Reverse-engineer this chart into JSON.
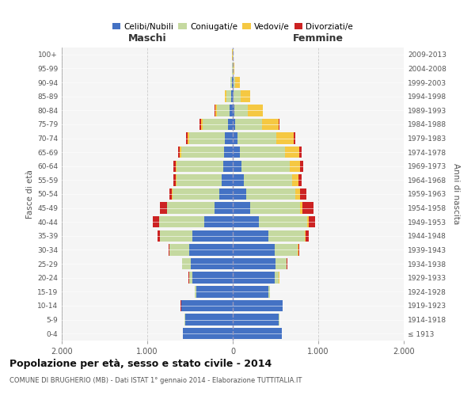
{
  "age_groups": [
    "0-4",
    "5-9",
    "10-14",
    "15-19",
    "20-24",
    "25-29",
    "30-34",
    "35-39",
    "40-44",
    "45-49",
    "50-54",
    "55-59",
    "60-64",
    "65-69",
    "70-74",
    "75-79",
    "80-84",
    "85-89",
    "90-94",
    "95-99",
    "100+"
  ],
  "birth_years": [
    "2009-2013",
    "2004-2008",
    "1999-2003",
    "1994-1998",
    "1989-1993",
    "1984-1988",
    "1979-1983",
    "1974-1978",
    "1969-1973",
    "1964-1968",
    "1959-1963",
    "1954-1958",
    "1949-1953",
    "1944-1948",
    "1939-1943",
    "1934-1938",
    "1929-1933",
    "1924-1928",
    "1919-1923",
    "1914-1918",
    "≤ 1913"
  ],
  "maschi": {
    "celibi": [
      580,
      560,
      600,
      430,
      470,
      490,
      510,
      470,
      330,
      210,
      155,
      130,
      115,
      105,
      90,
      60,
      35,
      15,
      5,
      3,
      2
    ],
    "coniugati": [
      5,
      5,
      5,
      10,
      40,
      100,
      230,
      380,
      530,
      560,
      550,
      530,
      540,
      500,
      420,
      290,
      150,
      60,
      20,
      4,
      2
    ],
    "vedovi": [
      1,
      1,
      1,
      1,
      1,
      2,
      2,
      2,
      2,
      3,
      5,
      8,
      10,
      15,
      20,
      25,
      20,
      15,
      5,
      2,
      1
    ],
    "divorziati": [
      1,
      1,
      1,
      2,
      3,
      5,
      10,
      30,
      70,
      80,
      30,
      30,
      25,
      20,
      15,
      10,
      5,
      2,
      1,
      0,
      0
    ]
  },
  "femmine": {
    "nubili": [
      570,
      540,
      580,
      420,
      490,
      500,
      490,
      420,
      310,
      200,
      155,
      130,
      100,
      80,
      60,
      30,
      20,
      10,
      5,
      3,
      2
    ],
    "coniugate": [
      5,
      5,
      5,
      15,
      50,
      130,
      270,
      420,
      560,
      590,
      580,
      560,
      570,
      530,
      450,
      310,
      160,
      80,
      25,
      5,
      3
    ],
    "vedove": [
      1,
      1,
      1,
      1,
      2,
      3,
      5,
      8,
      15,
      25,
      50,
      80,
      120,
      170,
      200,
      200,
      170,
      110,
      50,
      10,
      3
    ],
    "divorziate": [
      1,
      1,
      1,
      2,
      3,
      5,
      15,
      40,
      80,
      130,
      80,
      40,
      30,
      25,
      20,
      10,
      5,
      3,
      2,
      0,
      0
    ]
  },
  "colors": {
    "celibi": "#4472C4",
    "coniugati": "#C5D9A0",
    "vedovi": "#F5C842",
    "divorziati": "#CC2222"
  },
  "title": "Popolazione per età, sesso e stato civile - 2014",
  "subtitle": "COMUNE DI BRUGHERIO (MB) - Dati ISTAT 1° gennaio 2014 - Elaborazione TUTTITALIA.IT",
  "xlabel_left": "Maschi",
  "xlabel_right": "Femmine",
  "ylabel_left": "Fasce di età",
  "ylabel_right": "Anni di nascita",
  "xlim": 2000,
  "legend_labels": [
    "Celibi/Nubili",
    "Coniugati/e",
    "Vedovi/e",
    "Divorziati/e"
  ],
  "bg_color": "#f5f5f5",
  "fig_bg": "#ffffff"
}
